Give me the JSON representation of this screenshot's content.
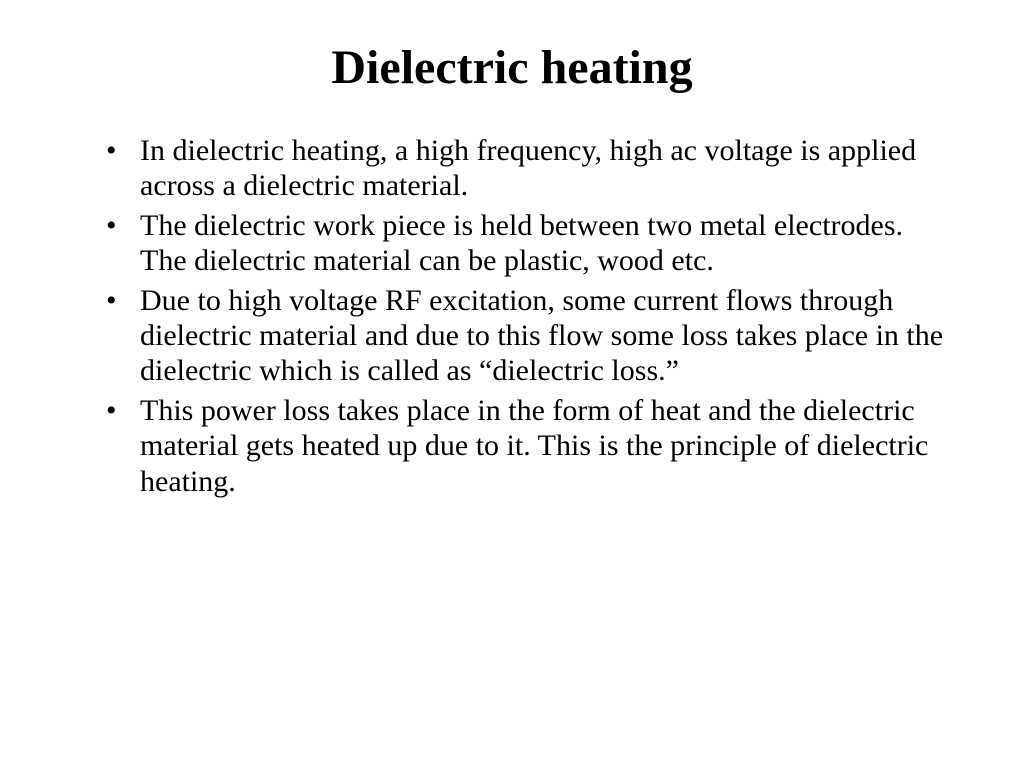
{
  "slide": {
    "title": "Dielectric heating",
    "title_fontsize": 48,
    "title_fontweight": "bold",
    "body_fontsize": 30,
    "font_family": "Times New Roman",
    "text_color": "#000000",
    "background_color": "#ffffff",
    "bullets": [
      "In dielectric heating, a high frequency, high ac voltage is applied across a dielectric material.",
      "The dielectric work piece is held between two metal electrodes. The dielectric material can be plastic, wood etc.",
      "Due to high voltage RF excitation, some current flows through dielectric material and due to this flow some loss takes place in the dielectric which is called as “dielectric loss.”",
      "This power loss takes place in the form of heat and the dielectric material gets heated up due to it. This is the principle of dielectric heating."
    ]
  }
}
